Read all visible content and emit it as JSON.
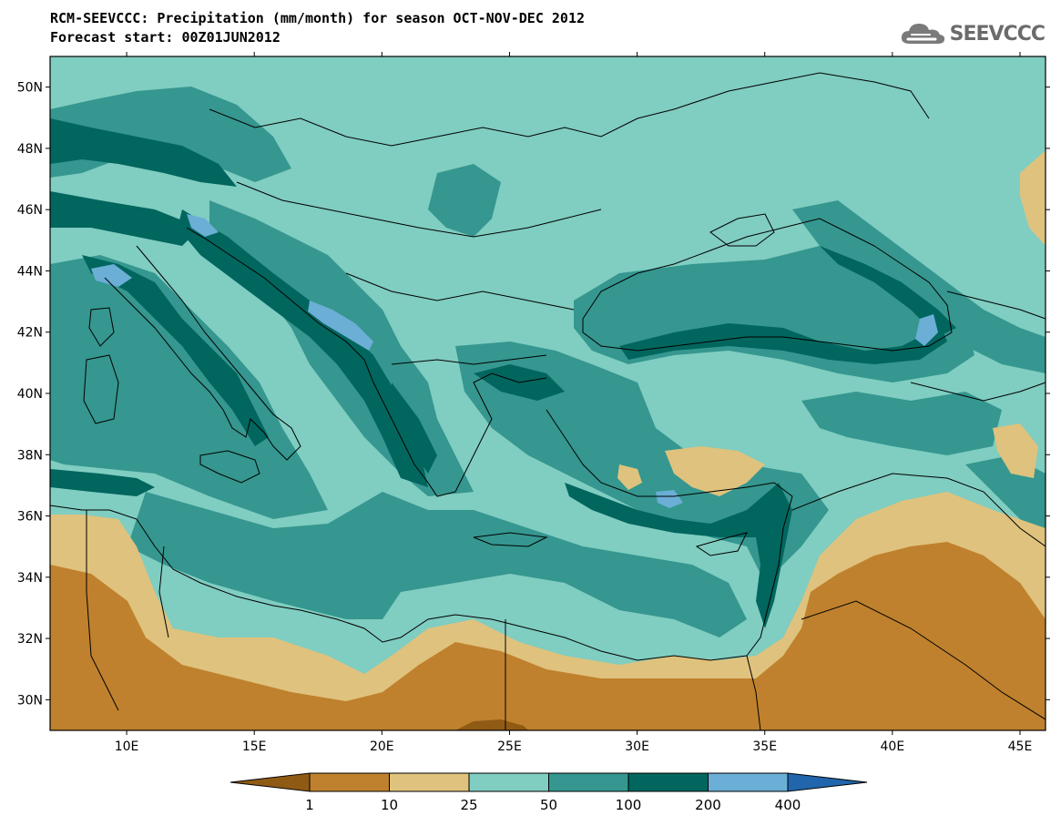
{
  "title": {
    "line1": "RCM-SEEVCCC: Precipitation (mm/month) for season OCT-NOV-DEC 2012",
    "line2": "Forecast start: 00Z01JUN2012"
  },
  "logo": {
    "text": "SEEVCCC",
    "icon": "cloud-icon"
  },
  "map": {
    "lon_range": [
      7,
      46
    ],
    "lat_range": [
      29,
      51
    ],
    "lon_ticks": [
      {
        "value": 10,
        "label": "10E"
      },
      {
        "value": 15,
        "label": "15E"
      },
      {
        "value": 20,
        "label": "20E"
      },
      {
        "value": 25,
        "label": "25E"
      },
      {
        "value": 30,
        "label": "30E"
      },
      {
        "value": 35,
        "label": "35E"
      },
      {
        "value": 40,
        "label": "40E"
      },
      {
        "value": 45,
        "label": "45E"
      }
    ],
    "lat_ticks": [
      {
        "value": 30,
        "label": "30N"
      },
      {
        "value": 32,
        "label": "32N"
      },
      {
        "value": 34,
        "label": "34N"
      },
      {
        "value": 36,
        "label": "36N"
      },
      {
        "value": 38,
        "label": "38N"
      },
      {
        "value": 40,
        "label": "40N"
      },
      {
        "value": 42,
        "label": "42N"
      },
      {
        "value": 44,
        "label": "44N"
      },
      {
        "value": 46,
        "label": "46N"
      },
      {
        "value": 48,
        "label": "48N"
      },
      {
        "value": 50,
        "label": "50N"
      }
    ]
  },
  "colorbar": {
    "colors": [
      "#8f5a14",
      "#bf812d",
      "#dfc27d",
      "#80cdc1",
      "#35978f",
      "#01665e",
      "#6baed6",
      "#2166ac"
    ],
    "labels": [
      "1",
      "10",
      "25",
      "50",
      "100",
      "200",
      "400"
    ],
    "palette": {
      "c_lt1": "#8f5a14",
      "c_1_10": "#bf812d",
      "c_10_25": "#dfc27d",
      "c_25_50": "#80cdc1",
      "c_50_100": "#35978f",
      "c_100_200": "#01665e",
      "c_200_400": "#6baed6"
    }
  }
}
